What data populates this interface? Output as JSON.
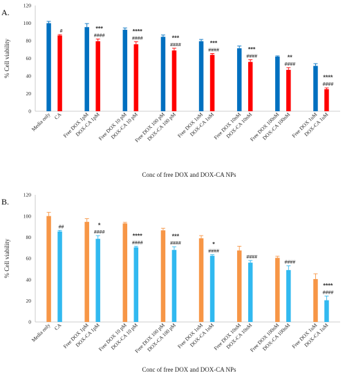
{
  "chart_data": [
    {
      "type": "bar",
      "panel_label": "A.",
      "title": "",
      "xlabel": "Conc of free DOX and DOX-CA NPs",
      "ylabel": "% Cell viability",
      "ylim": [
        0,
        120
      ],
      "yticks": [
        0,
        20,
        40,
        60,
        80,
        100,
        120
      ],
      "grid": false,
      "legend": "none",
      "bars": [
        {
          "label": "Media only",
          "value": 100,
          "error": 2,
          "color": "#0070C0",
          "annotations": []
        },
        {
          "label": "CA",
          "value": 86,
          "error": 1,
          "color": "#FF0000",
          "annotations": [
            "#"
          ]
        },
        {
          "label": "Free DOX 1pM",
          "value": 95.5,
          "error": 4,
          "color": "#0070C0",
          "annotations": []
        },
        {
          "label": "DOX-CA 1pM",
          "value": 79.5,
          "error": 2.5,
          "color": "#FF0000",
          "annotations": [
            "***",
            "####"
          ]
        },
        {
          "label": "Free DOX 10 pM",
          "value": 92.5,
          "error": 2,
          "color": "#0070C0",
          "annotations": []
        },
        {
          "label": "DOX-CA 10 pM",
          "value": 76,
          "error": 3,
          "color": "#FF0000",
          "annotations": [
            "****",
            "####"
          ]
        },
        {
          "label": "Free DOX 100 pM",
          "value": 84.5,
          "error": 2,
          "color": "#0070C0",
          "annotations": []
        },
        {
          "label": "DOX-CA 100 pM",
          "value": 69,
          "error": 2.5,
          "color": "#FF0000",
          "annotations": [
            "***",
            "####"
          ]
        },
        {
          "label": "Free DOX 1nM",
          "value": 79.5,
          "error": 2,
          "color": "#0070C0",
          "annotations": []
        },
        {
          "label": "DOX-CA 1nM",
          "value": 64,
          "error": 1.5,
          "color": "#FF0000",
          "annotations": [
            "***",
            "####"
          ]
        },
        {
          "label": "Free DOX 10nM",
          "value": 71.5,
          "error": 2.5,
          "color": "#0070C0",
          "annotations": []
        },
        {
          "label": "DOX-CA 10nM",
          "value": 56,
          "error": 2.5,
          "color": "#FF0000",
          "annotations": [
            "***",
            "####"
          ]
        },
        {
          "label": "Free DOX 100nM",
          "value": 62,
          "error": 0.8,
          "color": "#0070C0",
          "annotations": []
        },
        {
          "label": "DOX-CA 100nM",
          "value": 47,
          "error": 2.5,
          "color": "#FF0000",
          "annotations": [
            "**",
            "####"
          ]
        },
        {
          "label": "Free DOX 1uM",
          "value": 51.5,
          "error": 2.5,
          "color": "#0070C0",
          "annotations": []
        },
        {
          "label": "DOX-CA 1uM",
          "value": 25,
          "error": 1.5,
          "color": "#FF0000",
          "annotations": [
            "****",
            "####"
          ]
        }
      ]
    },
    {
      "type": "bar",
      "panel_label": "B.",
      "title": "",
      "xlabel": "Conc of free DOX and DOX-CA NPs",
      "ylabel": "% Cell viability",
      "ylim": [
        0,
        120
      ],
      "yticks": [
        0,
        20,
        40,
        60,
        80,
        100,
        120
      ],
      "grid": false,
      "legend": "none",
      "bars": [
        {
          "label": "Media only",
          "value": 100,
          "error": 3.5,
          "color": "#F79646",
          "annotations": []
        },
        {
          "label": "CA",
          "value": 85.5,
          "error": 1,
          "color": "#31B9F0",
          "annotations": [
            "##"
          ]
        },
        {
          "label": "Free DOX 1pM",
          "value": 94.5,
          "error": 3,
          "color": "#F79646",
          "annotations": []
        },
        {
          "label": "DOX-CA 1pM",
          "value": 78.5,
          "error": 3,
          "color": "#31B9F0",
          "annotations": [
            "*",
            "####"
          ]
        },
        {
          "label": "Free DOX 10 pM",
          "value": 93,
          "error": 1,
          "color": "#F79646",
          "annotations": []
        },
        {
          "label": "DOX-CA 10 pM",
          "value": 70.5,
          "error": 1,
          "color": "#31B9F0",
          "annotations": [
            "****",
            "####"
          ]
        },
        {
          "label": "Free DOX 100 pM",
          "value": 86.5,
          "error": 2,
          "color": "#F79646",
          "annotations": []
        },
        {
          "label": "DOX-CA 100 pM",
          "value": 68,
          "error": 3,
          "color": "#31B9F0",
          "annotations": [
            "***",
            "####"
          ]
        },
        {
          "label": "Free DOX 1nM",
          "value": 79,
          "error": 2.5,
          "color": "#F79646",
          "annotations": []
        },
        {
          "label": "DOX-CA 1nM",
          "value": 62.5,
          "error": 1,
          "color": "#31B9F0",
          "annotations": [
            "*",
            "####"
          ]
        },
        {
          "label": "Free DOX 10nM",
          "value": 67.5,
          "error": 4,
          "color": "#F79646",
          "annotations": []
        },
        {
          "label": "DOX-CA 10nM",
          "value": 56,
          "error": 2,
          "color": "#31B9F0",
          "annotations": [
            "####"
          ]
        },
        {
          "label": "Free DOX 100nM",
          "value": 60.5,
          "error": 1.5,
          "color": "#F79646",
          "annotations": []
        },
        {
          "label": "DOX-CA 100nM",
          "value": 49,
          "error": 4,
          "color": "#31B9F0",
          "annotations": [
            "####"
          ]
        },
        {
          "label": "Free DOX 1uM",
          "value": 40.5,
          "error": 5,
          "color": "#F79646",
          "annotations": []
        },
        {
          "label": "DOX-CA 1uM",
          "value": 20.5,
          "error": 4,
          "color": "#31B9F0",
          "annotations": [
            "****",
            "####"
          ]
        }
      ]
    }
  ]
}
